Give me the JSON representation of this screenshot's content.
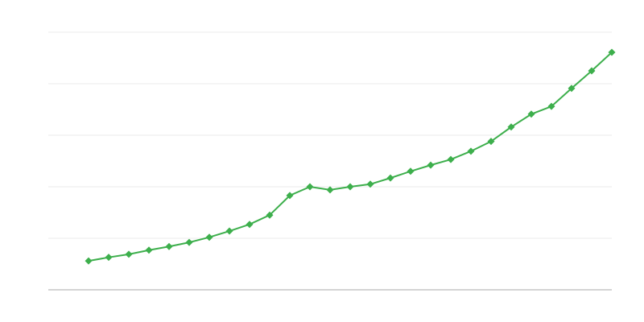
{
  "chart_data": {
    "type": "line",
    "x": [
      2,
      3,
      4,
      5,
      6,
      7,
      8,
      9,
      10,
      11,
      12,
      13,
      14,
      15,
      16,
      17,
      18,
      19,
      20,
      21,
      22,
      23,
      24,
      25,
      26,
      27,
      28
    ],
    "values": [
      0.56,
      0.63,
      0.69,
      0.77,
      0.84,
      0.92,
      1.02,
      1.14,
      1.27,
      1.45,
      1.83,
      2.0,
      1.94,
      2.0,
      2.05,
      2.17,
      2.3,
      2.42,
      2.53,
      2.69,
      2.88,
      3.16,
      3.41,
      3.56,
      3.91,
      4.25,
      4.61
    ],
    "color": "#3daf4c",
    "xlim": [
      0,
      28
    ],
    "ylim": [
      0,
      5
    ],
    "yticks": [
      0,
      1,
      2,
      3,
      4,
      5
    ],
    "grid": true
  }
}
